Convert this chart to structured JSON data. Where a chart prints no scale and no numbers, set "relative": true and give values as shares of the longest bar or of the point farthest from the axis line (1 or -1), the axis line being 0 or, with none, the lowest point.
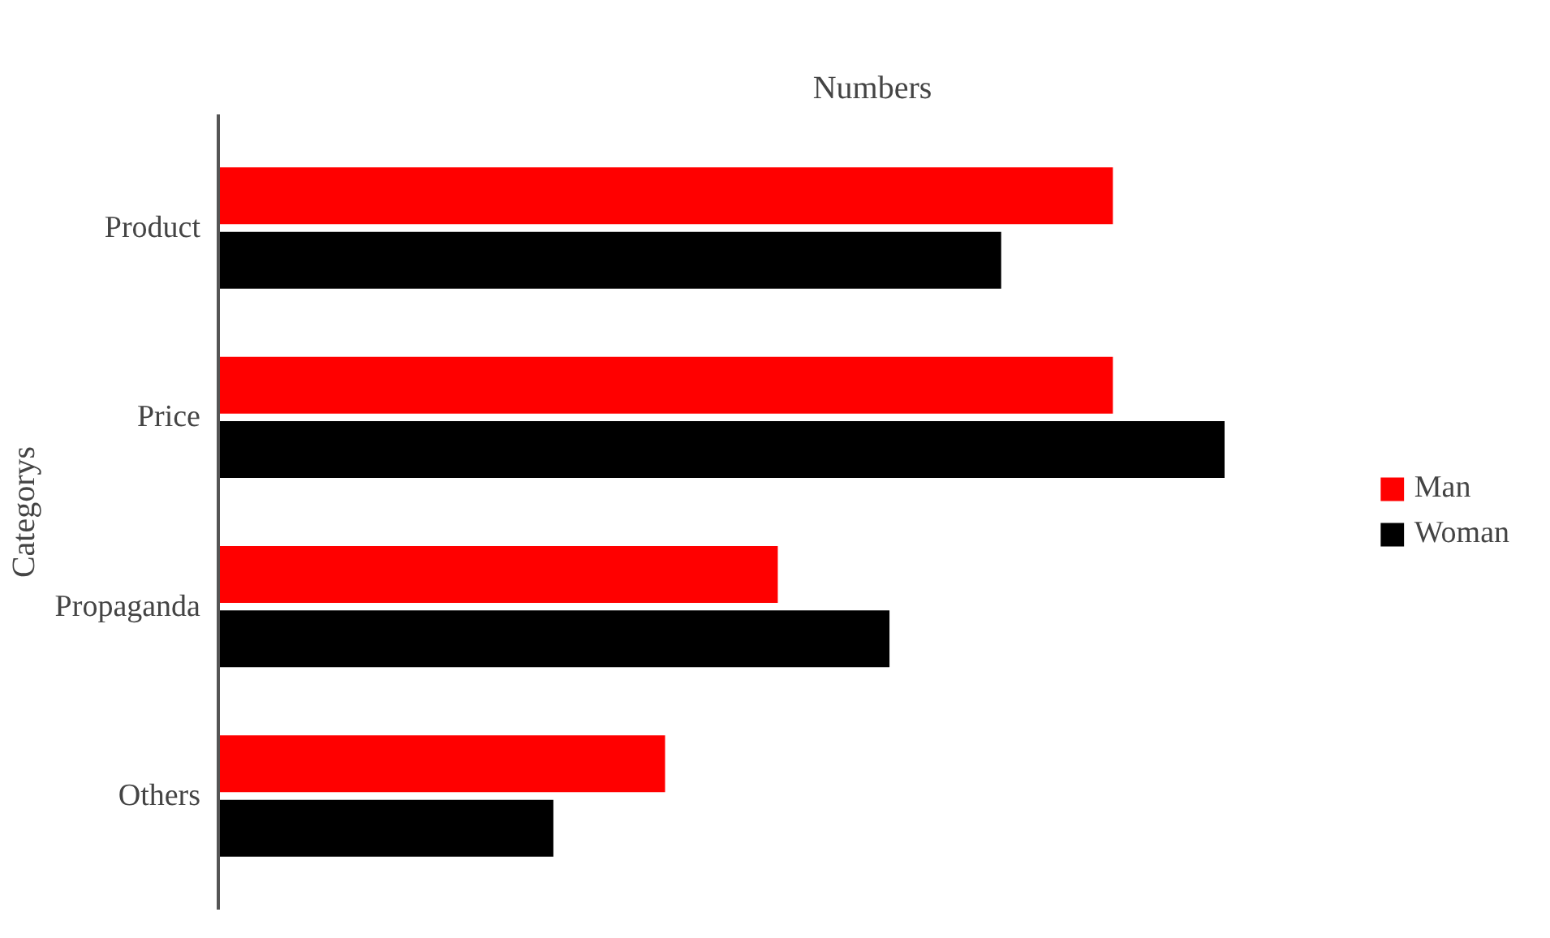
{
  "chart_data": {
    "type": "bar",
    "orientation": "horizontal",
    "relative": true,
    "xlabel": "Numbers",
    "ylabel": "Categorys",
    "categories": [
      "Product",
      "Price",
      "Propaganda",
      "Others"
    ],
    "series": [
      {
        "name": "Man",
        "color": "#ff0000",
        "values": [
          0.889,
          0.889,
          0.556,
          0.444
        ]
      },
      {
        "name": "Woman",
        "color": "#000000",
        "values": [
          0.778,
          1,
          0.667,
          0.333
        ]
      }
    ],
    "legend": "right",
    "grid": false
  }
}
